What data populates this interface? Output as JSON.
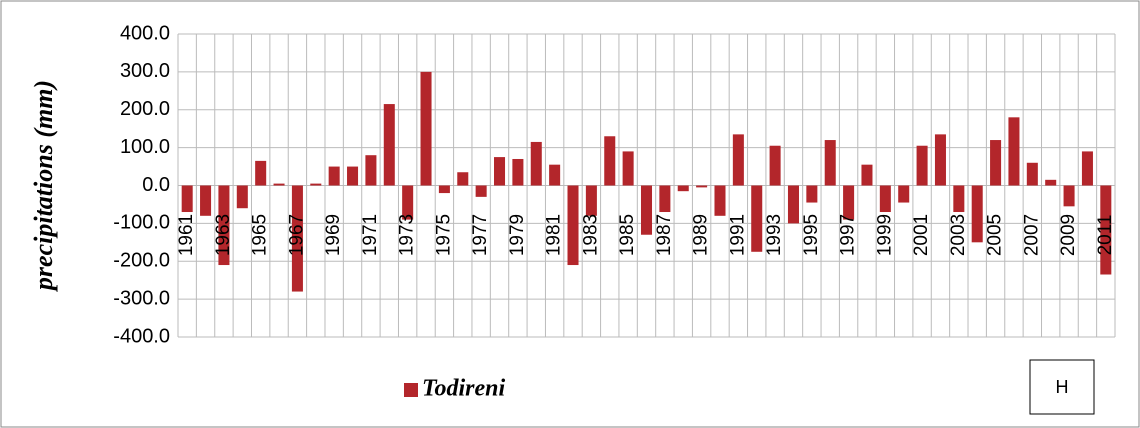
{
  "chart_data": {
    "type": "bar",
    "y_label": "precipitations (mm)",
    "categories": [
      "1961",
      null,
      "1963",
      null,
      "1965",
      null,
      "1967",
      null,
      "1969",
      null,
      "1971",
      null,
      "1973",
      null,
      "1975",
      null,
      "1977",
      null,
      "1979",
      null,
      "1981",
      null,
      "1983",
      null,
      "1985",
      null,
      "1987",
      null,
      "1989",
      null,
      "1991",
      null,
      "1993",
      null,
      "1995",
      null,
      "1997",
      null,
      "1999",
      null,
      "2001",
      null,
      "2003",
      null,
      "2005",
      null,
      "2007",
      null,
      "2009",
      null,
      "2011"
    ],
    "series": [
      {
        "name": "Todireni",
        "color": "#b3262b",
        "values": [
          -70,
          -80,
          -210,
          -60,
          65,
          5,
          -280,
          5,
          50,
          50,
          80,
          215,
          -90,
          300,
          -20,
          35,
          -30,
          75,
          70,
          115,
          55,
          -210,
          -80,
          130,
          90,
          -130,
          -70,
          -15,
          -5,
          -80,
          135,
          -175,
          105,
          -100,
          -45,
          120,
          -90,
          55,
          -70,
          -45,
          105,
          135,
          -70,
          -150,
          120,
          180,
          60,
          15,
          -55,
          90,
          -235
        ]
      }
    ],
    "ylim": [
      -400,
      400
    ],
    "yticks": [
      {
        "value": 400,
        "label": "400.0"
      },
      {
        "value": 300,
        "label": "300.0"
      },
      {
        "value": 200,
        "label": "200.0"
      },
      {
        "value": 100,
        "label": "100.0"
      },
      {
        "value": 0,
        "label": "0.0"
      },
      {
        "value": -100,
        "label": "-100.0"
      },
      {
        "value": -200,
        "label": "-200.0"
      },
      {
        "value": -300,
        "label": "-300.0"
      },
      {
        "value": -400,
        "label": "-400.0"
      }
    ],
    "grid": true,
    "annotation": "H"
  }
}
